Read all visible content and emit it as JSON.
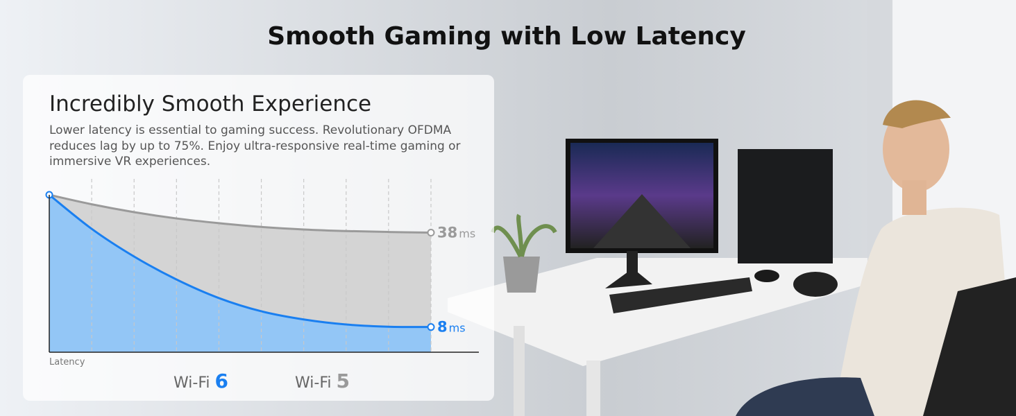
{
  "title": "Smooth Gaming with Low Latency",
  "chart_data": {
    "type": "line",
    "title": "Incredibly Smooth Experience",
    "subtitle": "Lower latency is essential to gaming success. Revolutionary OFDMA reduces lag by up to 75%. Enjoy ultra-responsive real-time gaming or immersive VR experiences.",
    "y_label": "Latency",
    "unit": "ms",
    "categories": [
      null,
      null,
      null,
      null,
      null,
      null,
      null,
      null,
      null,
      null
    ],
    "ylim": [
      0,
      50
    ],
    "grid": true,
    "series": [
      {
        "name": "Wi-Fi 6",
        "color": "#1a7ff0",
        "fill": "#93c6f6",
        "values": [
          50,
          39.2,
          30.4,
          23.1,
          17.2,
          13.0,
          10.4,
          8.8,
          8.1,
          8
        ]
      },
      {
        "name": "Wi-Fi 5",
        "color": "#9a9a9a",
        "fill": "#d4d4d4",
        "values": [
          50,
          47,
          44.5,
          42.5,
          41,
          39.8,
          39,
          38.5,
          38.2,
          38
        ]
      }
    ]
  }
}
